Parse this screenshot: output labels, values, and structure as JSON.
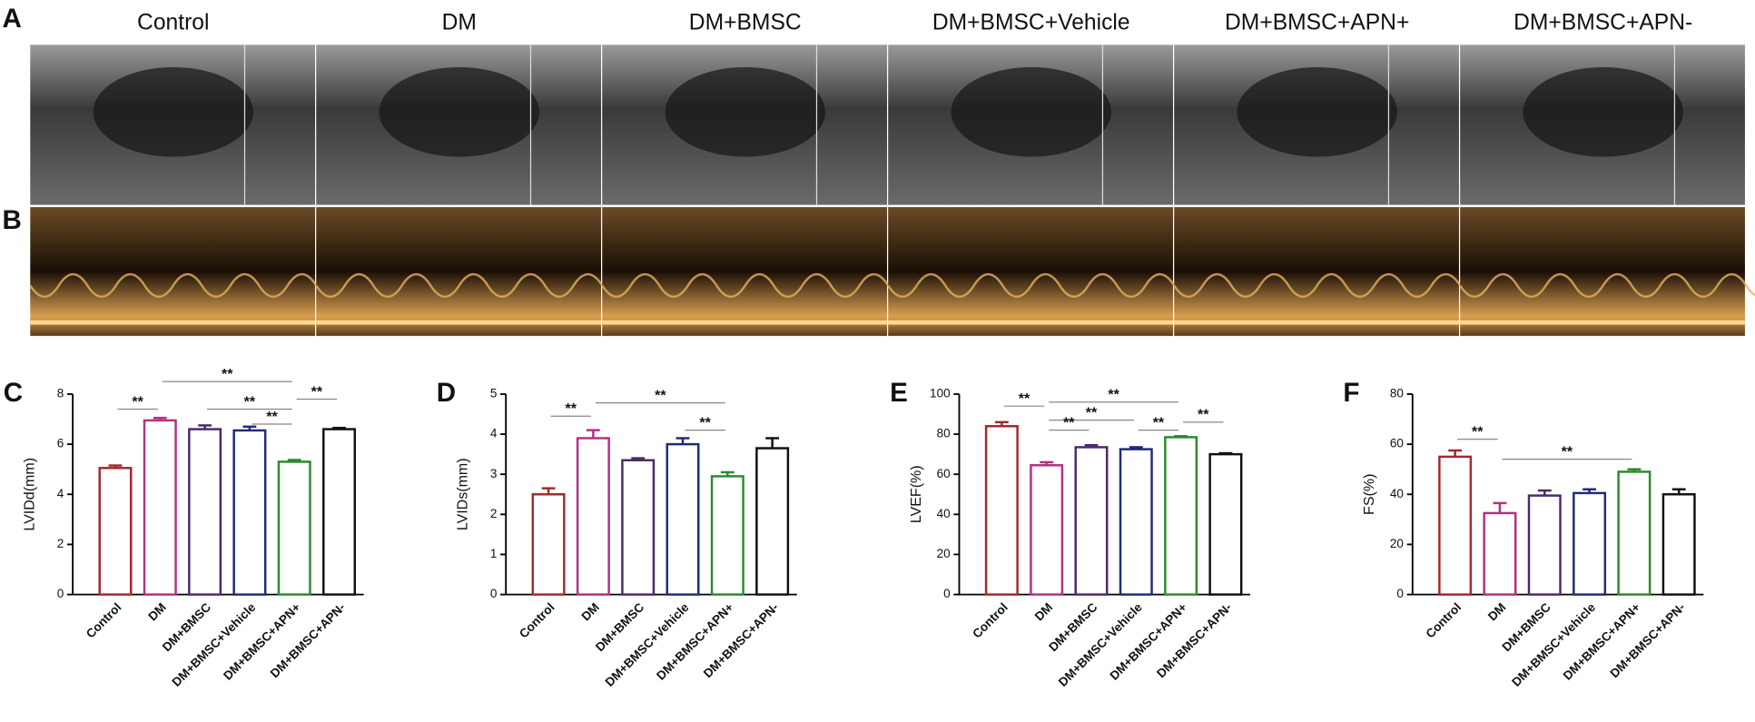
{
  "figure": {
    "image_panel_labels": [
      "A",
      "B"
    ],
    "image_columns": [
      "Control",
      "DM",
      "DM+BMSC",
      "DM+BMSC+Vehicle",
      "DM+BMSC+APN+",
      "DM+BMSC+APN-"
    ]
  },
  "chart_data": [
    {
      "type": "bar",
      "panel_label": "C",
      "y_label": "LVIDd(mm)",
      "categories": [
        "Control",
        "DM",
        "DM+BMSC",
        "DM+BMSC+Vehicle",
        "DM+BMSC+APN+",
        "DM+BMSC+APN-"
      ],
      "values": [
        5.05,
        6.95,
        6.6,
        6.55,
        5.3,
        6.6
      ],
      "errors": [
        0.1,
        0.1,
        0.15,
        0.15,
        0.07,
        0.05
      ],
      "colors": [
        "#a4282b",
        "#b3307f",
        "#4a2a6c",
        "#1f2a7c",
        "#2b8a2e",
        "#111111"
      ],
      "ylim": [
        0,
        8
      ],
      "yticks": [
        0,
        2,
        4,
        6,
        8
      ],
      "annotations": [
        {
          "label": "**",
          "from": 0,
          "to": 1,
          "y": 7.4
        },
        {
          "label": "**",
          "from": 1,
          "to": 4,
          "y": 8.5
        },
        {
          "label": "**",
          "from": 2,
          "to": 4,
          "y": 7.4
        },
        {
          "label": "**",
          "from": 3,
          "to": 4,
          "y": 6.8
        },
        {
          "label": "**",
          "from": 4,
          "to": 5,
          "y": 7.8
        }
      ]
    },
    {
      "type": "bar",
      "panel_label": "D",
      "y_label": "LVIDs(mm)",
      "categories": [
        "Control",
        "DM",
        "DM+BMSC",
        "DM+BMSC+Vehicle",
        "DM+BMSC+APN+",
        "DM+BMSC+APN-"
      ],
      "values": [
        2.5,
        3.9,
        3.35,
        3.75,
        2.95,
        3.65
      ],
      "errors": [
        0.15,
        0.2,
        0.05,
        0.15,
        0.1,
        0.25
      ],
      "colors": [
        "#a4282b",
        "#b3307f",
        "#4a2a6c",
        "#1f2a7c",
        "#2b8a2e",
        "#111111"
      ],
      "ylim": [
        0,
        5
      ],
      "yticks": [
        0,
        1,
        2,
        3,
        4,
        5
      ],
      "annotations": [
        {
          "label": "**",
          "from": 0,
          "to": 1,
          "y": 4.45
        },
        {
          "label": "**",
          "from": 1,
          "to": 4,
          "y": 4.78
        },
        {
          "label": "**",
          "from": 3,
          "to": 4,
          "y": 4.1
        }
      ]
    },
    {
      "type": "bar",
      "panel_label": "E",
      "y_label": "LVEF(%)",
      "categories": [
        "Control",
        "DM",
        "DM+BMSC",
        "DM+BMSC+Vehicle",
        "DM+BMSC+APN+",
        "DM+BMSC+APN-"
      ],
      "values": [
        84,
        64.5,
        73.5,
        72.5,
        78.5,
        70
      ],
      "errors": [
        2,
        1.5,
        1,
        1,
        0.5,
        0.5
      ],
      "colors": [
        "#a4282b",
        "#b3307f",
        "#4a2a6c",
        "#1f2a7c",
        "#2b8a2e",
        "#111111"
      ],
      "ylim": [
        0,
        100
      ],
      "yticks": [
        0,
        20,
        40,
        60,
        80,
        100
      ],
      "annotations": [
        {
          "label": "**",
          "from": 0,
          "to": 1,
          "y": 94
        },
        {
          "label": "**",
          "from": 1,
          "to": 4,
          "y": 96
        },
        {
          "label": "**",
          "from": 1,
          "to": 3,
          "y": 87
        },
        {
          "label": "**",
          "from": 1,
          "to": 2,
          "y": 82
        },
        {
          "label": "**",
          "from": 3,
          "to": 4,
          "y": 82
        },
        {
          "label": "**",
          "from": 4,
          "to": 5,
          "y": 86
        }
      ]
    },
    {
      "type": "bar",
      "panel_label": "F",
      "y_label": "FS(%)",
      "categories": [
        "Control",
        "DM",
        "DM+BMSC",
        "DM+BMSC+Vehicle",
        "DM+BMSC+APN+",
        "DM+BMSC+APN-"
      ],
      "values": [
        55,
        32.5,
        39.5,
        40.5,
        49,
        40
      ],
      "errors": [
        2.5,
        4,
        2,
        1.5,
        1,
        2
      ],
      "colors": [
        "#a4282b",
        "#b3307f",
        "#4a2a6c",
        "#1f2a7c",
        "#2b8a2e",
        "#111111"
      ],
      "ylim": [
        0,
        80
      ],
      "yticks": [
        0,
        20,
        40,
        60,
        80
      ],
      "annotations": [
        {
          "label": "**",
          "from": 0,
          "to": 1,
          "y": 62
        },
        {
          "label": "**",
          "from": 1,
          "to": 4,
          "y": 54
        }
      ]
    }
  ]
}
